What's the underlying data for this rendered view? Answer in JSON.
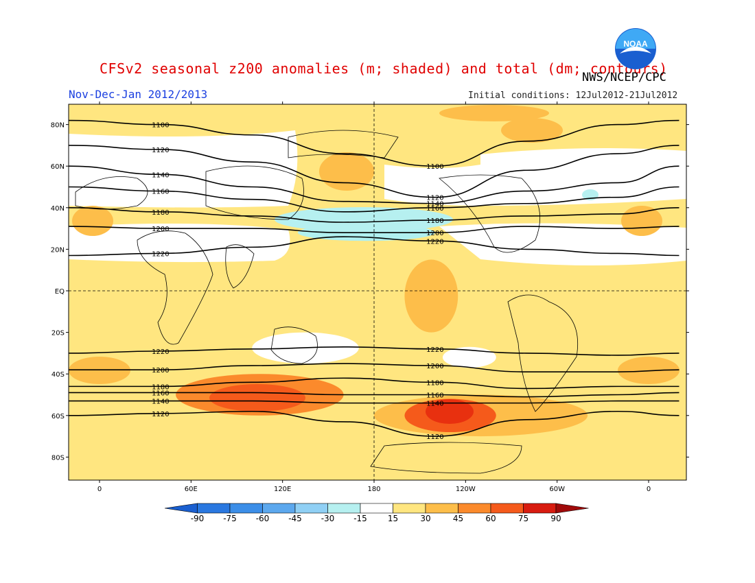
{
  "header": {
    "title": "CFSv2 seasonal z200 anomalies (m; shaded) and total (dm; contours)",
    "agency": "NWS/NCEP/CPC",
    "period": "Nov-Dec-Jan 2012/2013",
    "initial_conditions": "Initial conditions: 12Jul2012-21Jul2012"
  },
  "logo": {
    "text": "NOAA",
    "colors": {
      "disc": "#1a5fd0",
      "light": "#3fa9f5",
      "gull": "#ffffff"
    }
  },
  "map": {
    "lat_labels": [
      "80N",
      "60N",
      "40N",
      "20N",
      "EQ",
      "20S",
      "40S",
      "60S",
      "80S"
    ],
    "lon_labels": [
      "0",
      "60E",
      "120E",
      "180",
      "120W",
      "60W",
      "0"
    ],
    "background_color": "#ffe680"
  },
  "chart_data": {
    "type": "heatmap",
    "anomaly_regions": [
      {
        "lon": [
          0,
          360
        ],
        "lat": [
          6,
          35
        ],
        "value": 15,
        "color": "#ffe680"
      },
      {
        "lon": [
          200,
          235
        ],
        "lat": [
          -20,
          15
        ],
        "value": 30,
        "color": "#fdbe4a"
      },
      {
        "lon": [
          180,
          320
        ],
        "lat": [
          -50,
          -70
        ],
        "value": 30,
        "color": "#fdbe4a"
      },
      {
        "lon": [
          50,
          160
        ],
        "lat": [
          -40,
          -60
        ],
        "value": 45,
        "color": "#fb8a2c"
      },
      {
        "lon": [
          200,
          260
        ],
        "lat": [
          -52,
          -68
        ],
        "value": 60,
        "color": "#f55a1b"
      },
      {
        "lon": [
          130,
          220
        ],
        "lat": [
          24,
          32
        ],
        "value": -15,
        "color": "#b0f0f0"
      },
      {
        "lon": [
          100,
          170
        ],
        "lat": [
          -20,
          -35
        ],
        "value": 0,
        "color": "#ffffff"
      },
      {
        "lon": [
          225,
          260
        ],
        "lat": [
          -27,
          -37
        ],
        "value": 0,
        "color": "#ffffff"
      }
    ],
    "contours": [
      {
        "value": "1100",
        "lat_profile": [
          82,
          80,
          75,
          66,
          60,
          72,
          80,
          82
        ]
      },
      {
        "value": "1120",
        "lat_profile": [
          70,
          68,
          62,
          52,
          45,
          58,
          66,
          70
        ]
      },
      {
        "value": "1140",
        "lat_profile": [
          60,
          56,
          50,
          43,
          42,
          48,
          52,
          60
        ]
      },
      {
        "value": "1160",
        "lat_profile": [
          50,
          48,
          44,
          38,
          40,
          42,
          45,
          50
        ]
      },
      {
        "value": "1180",
        "lat_profile": [
          40,
          38,
          36,
          33,
          34,
          36,
          37,
          40
        ]
      },
      {
        "value": "1200",
        "lat_profile": [
          31,
          30,
          30,
          28,
          28,
          31,
          30,
          31
        ]
      },
      {
        "value": "1220",
        "lat_profile": [
          17,
          18,
          21,
          26,
          24,
          20,
          18,
          17
        ]
      },
      {
        "value": "1220",
        "lat_profile": [
          -30,
          -29,
          -28,
          -27,
          -28,
          -30,
          -31,
          -30
        ]
      },
      {
        "value": "1200",
        "lat_profile": [
          -38,
          -38,
          -36,
          -35,
          -36,
          -39,
          -39,
          -38
        ]
      },
      {
        "value": "1180",
        "lat_profile": [
          -46,
          -46,
          -44,
          -42,
          -44,
          -47,
          -46,
          -46
        ]
      },
      {
        "value": "1160",
        "lat_profile": [
          -49,
          -49,
          -49,
          -50,
          -50,
          -51,
          -50,
          -49
        ]
      },
      {
        "value": "1140",
        "lat_profile": [
          -53,
          -53,
          -53,
          -54,
          -54,
          -54,
          -53,
          -53
        ]
      },
      {
        "value": "1120",
        "lat_profile": [
          -60,
          -59,
          -58,
          -63,
          -70,
          -62,
          -58,
          -60
        ]
      }
    ],
    "colorbar": {
      "levels": [
        "-90",
        "-75",
        "-60",
        "-45",
        "-30",
        "-15",
        "15",
        "30",
        "45",
        "60",
        "75",
        "90"
      ],
      "colors": [
        "#1a5fd0",
        "#2a78e0",
        "#3c8ee8",
        "#5ca8ee",
        "#90d0f5",
        "#b6f0f0",
        "#ffffff",
        "#ffe680",
        "#fdbe4a",
        "#fb8a2c",
        "#f55a1b",
        "#d81c10",
        "#a00a0a"
      ]
    }
  }
}
